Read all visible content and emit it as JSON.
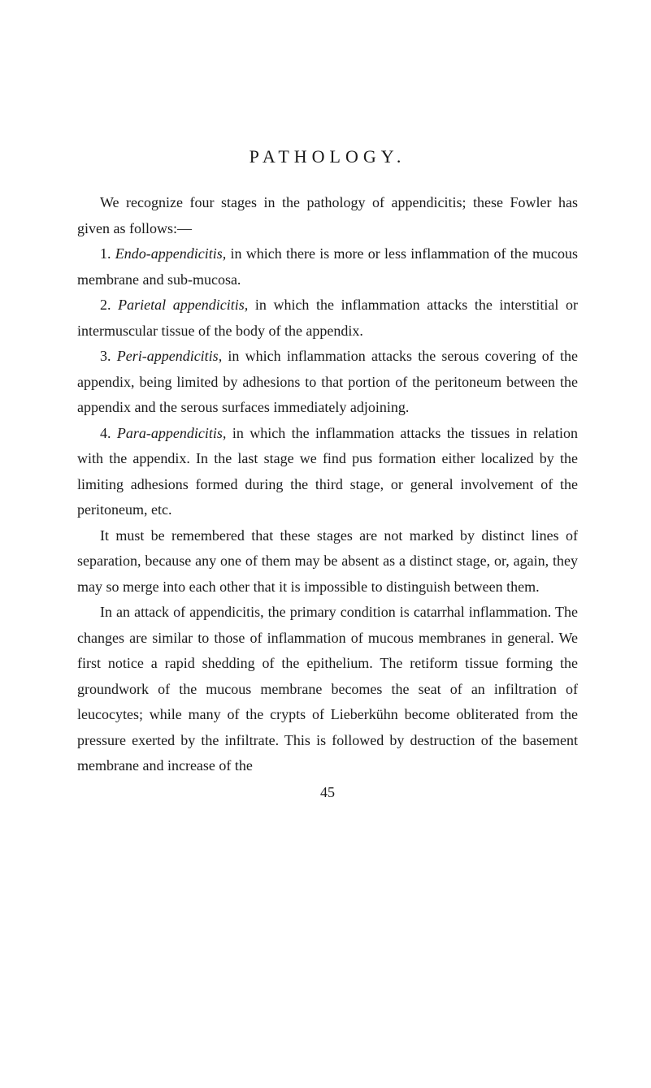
{
  "heading": "PATHOLOGY.",
  "intro": "We recognize four stages in the pathology of appendicitis; these Fowler has given as follows:—",
  "item1_num": "1. ",
  "item1_term": "Endo-appendicitis,",
  "item1_rest": " in which there is more or less inflammation of the mucous membrane and sub-mucosa.",
  "item2_num": "2. ",
  "item2_term": "Parietal appendicitis,",
  "item2_rest": " in which the inflammation attacks the interstitial or intermuscular tissue of the body of the appendix.",
  "item3_num": "3. ",
  "item3_term": "Peri-appendicitis,",
  "item3_rest": " in which inflammation attacks the serous covering of the appendix, being limited by adhesions to that portion of the peritoneum between the appendix and the serous surfaces immediately adjoining.",
  "item4_num": "4. ",
  "item4_term": "Para-appendicitis,",
  "item4_rest": " in which the inflammation attacks the tissues in relation with the appendix. In the last stage we find pus formation either localized by the limiting adhesions formed during the third stage, or general involvement of the peritoneum, etc.",
  "para5": "It must be remembered that these stages are not marked by distinct lines of separation, because any one of them may be absent as a distinct stage, or, again, they may so merge into each other that it is impossible to distinguish between them.",
  "para6": "In an attack of appendicitis, the primary condition is catarrhal inflammation. The changes are similar to those of inflammation of mucous membranes in general. We first notice a rapid shedding of the epithelium. The retiform tissue forming the groundwork of the mucous membrane becomes the seat of an infiltration of leucocytes; while many of the crypts of Lieberkühn become obliterated from the pressure exerted by the infiltrate. This is followed by destruction of the basement membrane and increase of the",
  "page_number": "45"
}
